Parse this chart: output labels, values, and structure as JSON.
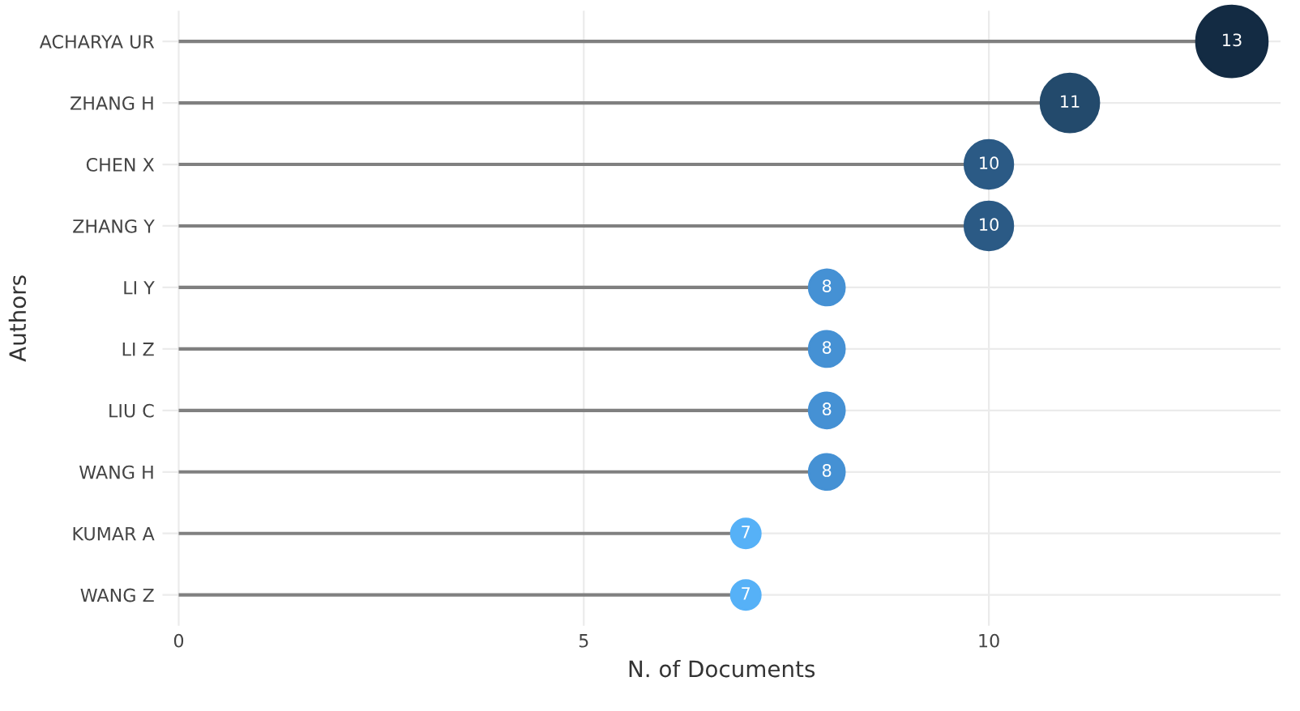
{
  "chart_data": {
    "type": "lollipop",
    "orientation": "horizontal",
    "xlabel": "N. of Documents",
    "ylabel": "Authors",
    "categories": [
      "ACHARYA UR",
      "ZHANG H",
      "CHEN X",
      "ZHANG Y",
      "LI Y",
      "LI Z",
      "LIU C",
      "WANG H",
      "KUMAR A",
      "WANG Z"
    ],
    "values": [
      13,
      11,
      10,
      10,
      8,
      8,
      8,
      8,
      7,
      7
    ],
    "colors": [
      "#132b43",
      "#234a6c",
      "#2b5a85",
      "#2b5a85",
      "#4591d4",
      "#4591d4",
      "#4591d4",
      "#4591d4",
      "#56b1f7",
      "#56b1f7"
    ],
    "sizes": [
      1,
      0.67,
      0.46,
      0.46,
      0.25,
      0.25,
      0.25,
      0.25,
      0.17,
      0.17
    ],
    "xlim": [
      -0.2,
      13.6
    ],
    "xticks": [
      0,
      5,
      10
    ],
    "grid": true,
    "data_labels": true
  }
}
